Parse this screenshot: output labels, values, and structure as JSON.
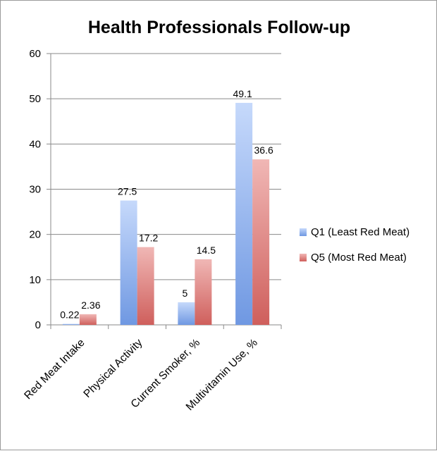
{
  "chart_data": {
    "type": "bar",
    "title": "Health Professionals Follow-up",
    "categories": [
      "Red Meat Intake",
      "Physical Activity",
      "Current Smoker, %",
      "Multivitamin Use, %"
    ],
    "series": [
      {
        "name": "Q1 (Least Red Meat)",
        "values": [
          0.22,
          27.5,
          5,
          49.1
        ],
        "labels": [
          "0.22",
          "27.5",
          "5",
          "49.1"
        ],
        "color": "#8fb3f0"
      },
      {
        "name": "Q5 (Most Red Meat)",
        "values": [
          2.36,
          17.2,
          14.5,
          36.6
        ],
        "labels": [
          "2.36",
          "17.2",
          "14.5",
          "36.6"
        ],
        "color": "#e08c8a"
      }
    ],
    "ylim": [
      0,
      60
    ],
    "yticks": [
      0,
      10,
      20,
      30,
      40,
      50,
      60
    ],
    "grid": true,
    "legend": "right"
  }
}
